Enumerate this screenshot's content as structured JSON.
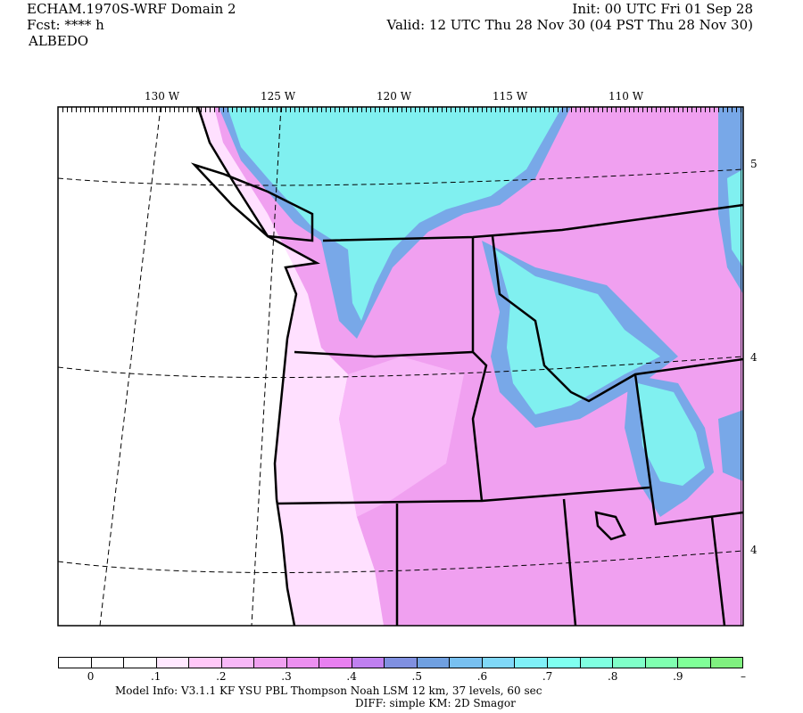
{
  "header": {
    "title": "ECHAM.1970S-WRF Domain 2",
    "fcst": "Fcst: **** h",
    "field": "ALBEDO",
    "init": "Init: 00 UTC Fri 01 Sep 28",
    "valid": "Valid: 12 UTC Thu 28 Nov 30 (04 PST Thu 28 Nov 30)"
  },
  "map": {
    "lon_labels": [
      "130 W",
      "125 W",
      "120 W",
      "115 W",
      "110 W"
    ],
    "lat_labels": [
      "5",
      "4",
      "4"
    ],
    "region": "Pacific Northwest / Northern Rockies",
    "colors": {
      "ocean": "#ffffff",
      "land_default": "#f0a0f0",
      "coastal": "#ffe0ff",
      "snow": "#80f0f0",
      "snow_edge": "#78a8e8",
      "borders": "#000000"
    }
  },
  "colorbar": {
    "colors": [
      "#ffffff",
      "#ffffff",
      "#ffffff",
      "#ffe8ff",
      "#ffc8f8",
      "#f8b8f8",
      "#f0a0f0",
      "#ec90f0",
      "#e880f0",
      "#c080f0",
      "#8090e0",
      "#70a0e0",
      "#78c0f0",
      "#80d8f8",
      "#80f0f8",
      "#80fff0",
      "#80ffe0",
      "#80ffc8",
      "#80ffb0",
      "#80ff98",
      "#80f080"
    ],
    "labels": [
      "0",
      ".1",
      ".2",
      ".3",
      ".4",
      ".5",
      ".6",
      ".7",
      ".8",
      ".9",
      "–"
    ]
  },
  "footer": {
    "model_info": "Model Info: V3.1.1    KF      YSU PBL   Thompson     Noah LSM   12 km,     37 levels,     60 sec",
    "diff": "DIFF: simple KM: 2D Smagor"
  }
}
